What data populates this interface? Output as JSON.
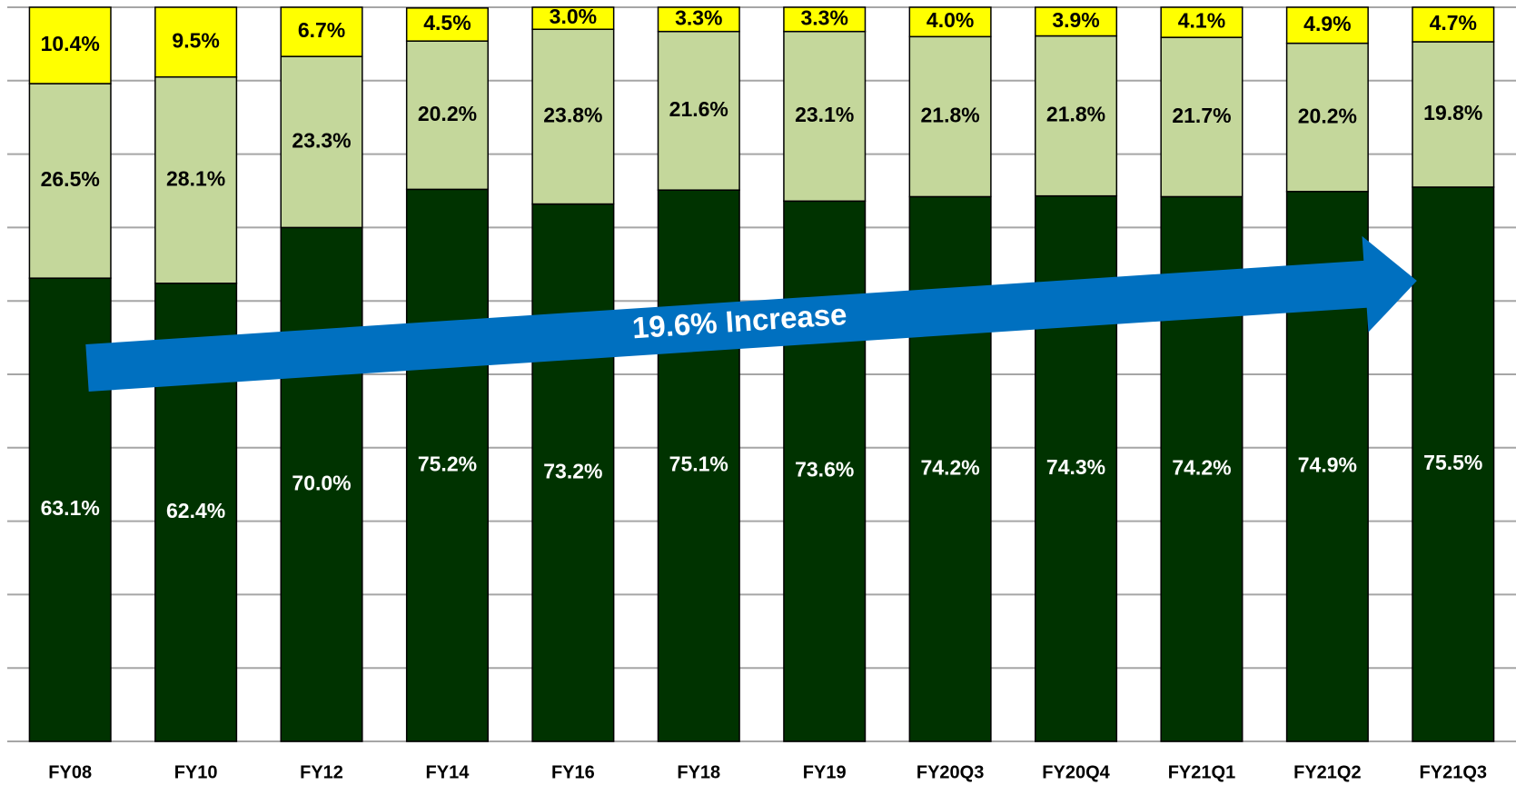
{
  "chart_data": {
    "type": "stacked_bar",
    "categories": [
      "FY08",
      "FY10",
      "FY12",
      "FY14",
      "FY16",
      "FY18",
      "FY19",
      "FY20Q3",
      "FY20Q4",
      "FY21Q1",
      "FY21Q2",
      "FY21Q3"
    ],
    "series": [
      {
        "color": "#003300",
        "label_color": "#ffffff",
        "values": [
          63.1,
          62.4,
          70.0,
          75.2,
          73.2,
          75.1,
          73.6,
          74.2,
          74.3,
          74.2,
          74.9,
          75.5
        ],
        "value_labels": [
          "63.1%",
          "62.4%",
          "70.0%",
          "75.2%",
          "73.2%",
          "75.1%",
          "73.6%",
          "74.2%",
          "74.3%",
          "74.2%",
          "74.9%",
          "75.5%"
        ]
      },
      {
        "color": "#c4d79b",
        "label_color": "#000000",
        "values": [
          26.5,
          28.1,
          23.3,
          20.2,
          23.8,
          21.6,
          23.1,
          21.8,
          21.8,
          21.7,
          20.2,
          19.8
        ],
        "value_labels": [
          "26.5%",
          "28.1%",
          "23.3%",
          "20.2%",
          "23.8%",
          "21.6%",
          "23.1%",
          "21.8%",
          "21.8%",
          "21.7%",
          "20.2%",
          "19.8%"
        ]
      },
      {
        "color": "#ffff00",
        "label_color": "#000000",
        "values": [
          10.4,
          9.5,
          6.7,
          4.5,
          3.0,
          3.3,
          3.3,
          4.0,
          3.9,
          4.1,
          4.9,
          4.7
        ],
        "value_labels": [
          "10.4%",
          "9.5%",
          "6.7%",
          "4.5%",
          "3.0%",
          "3.3%",
          "3.3%",
          "4.0%",
          "3.9%",
          "4.1%",
          "4.9%",
          "4.7%"
        ]
      }
    ],
    "annotation": "19.6% Increase",
    "ylim": [
      0,
      100
    ],
    "yticks": [
      0,
      10,
      20,
      30,
      40,
      50,
      60,
      70,
      80,
      90,
      100
    ],
    "grid": true
  }
}
